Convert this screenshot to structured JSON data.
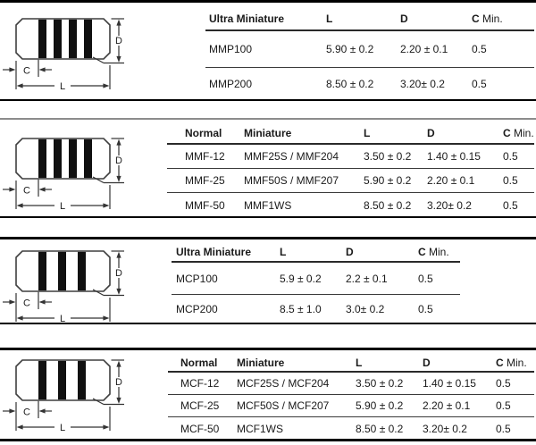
{
  "colors": {
    "section_rule": "#000000",
    "divider_gray": "#8c8c8c",
    "band": "#101010",
    "body_outline": "#3f3f3f",
    "dimension_line": "#333333"
  },
  "sections": [
    {
      "name": "ultra-miniature-mmp",
      "diagram": {
        "bands": 4,
        "labels": {
          "d": "D",
          "c": "C",
          "l": "L"
        }
      },
      "table": {
        "headers": [
          {
            "b": "Ultra Miniature",
            "r": ""
          },
          {
            "b": "L",
            "r": ""
          },
          {
            "b": "D",
            "r": ""
          },
          {
            "b": "C",
            "r": " Min."
          }
        ],
        "rows": [
          [
            "MMP100",
            "5.90 ± 0.2",
            "2.20 ± 0.1",
            "0.5"
          ],
          [
            "MMP200",
            "8.50 ± 0.2",
            "3.20± 0.2",
            "0.5"
          ]
        ]
      }
    },
    {
      "name": "normal-miniature-mmf",
      "diagram": {
        "bands": 4,
        "labels": {
          "d": "D",
          "c": "C",
          "l": "L"
        }
      },
      "table": {
        "headers": [
          {
            "b": "Normal",
            "r": ""
          },
          {
            "b": "Miniature",
            "r": ""
          },
          {
            "b": "L",
            "r": ""
          },
          {
            "b": "D",
            "r": ""
          },
          {
            "b": "C",
            "r": " Min."
          }
        ],
        "rows": [
          [
            "MMF-12",
            "MMF25S / MMF204",
            "3.50 ± 0.2",
            "1.40 ± 0.15",
            "0.5"
          ],
          [
            "MMF-25",
            "MMF50S / MMF207",
            "5.90 ± 0.2",
            "2.20 ± 0.1",
            "0.5"
          ],
          [
            "MMF-50",
            "MMF1WS",
            "8.50 ± 0.2",
            "3.20± 0.2",
            "0.5"
          ]
        ]
      }
    },
    {
      "name": "ultra-miniature-mcp",
      "diagram": {
        "bands": 3,
        "labels": {
          "d": "D",
          "c": "C",
          "l": "L"
        }
      },
      "table": {
        "headers": [
          {
            "b": "Ultra Miniature",
            "r": ""
          },
          {
            "b": "L",
            "r": ""
          },
          {
            "b": "D",
            "r": ""
          },
          {
            "b": "C",
            "r": " Min."
          }
        ],
        "rows": [
          [
            "MCP100",
            "5.9 ± 0.2",
            "2.2 ± 0.1",
            "0.5"
          ],
          [
            "MCP200",
            "8.5 ± 1.0",
            "3.0± 0.2",
            "0.5"
          ]
        ]
      }
    },
    {
      "name": "normal-miniature-mcf",
      "diagram": {
        "bands": 3,
        "labels": {
          "d": "D",
          "c": "C",
          "l": "L"
        }
      },
      "table": {
        "headers": [
          {
            "b": "Normal",
            "r": ""
          },
          {
            "b": "Miniature",
            "r": ""
          },
          {
            "b": "L",
            "r": ""
          },
          {
            "b": "D",
            "r": ""
          },
          {
            "b": "C",
            "r": " Min."
          }
        ],
        "rows": [
          [
            "MCF-12",
            "MCF25S / MCF204",
            "3.50 ± 0.2",
            "1.40 ± 0.15",
            "0.5"
          ],
          [
            "MCF-25",
            "MCF50S / MCF207",
            "5.90 ± 0.2",
            "2.20 ± 0.1",
            "0.5"
          ],
          [
            "MCF-50",
            "MCF1WS",
            "8.50 ± 0.2",
            "3.20± 0.2",
            "0.5"
          ]
        ]
      }
    }
  ]
}
